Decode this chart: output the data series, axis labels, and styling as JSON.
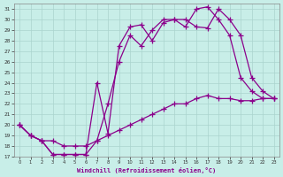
{
  "xlabel": "Windchill (Refroidissement éolien,°C)",
  "background_color": "#c8eee8",
  "line_color": "#8b008b",
  "grid_color": "#aad4ce",
  "xlim": [
    -0.5,
    23.5
  ],
  "ylim": [
    17,
    31.5
  ],
  "yticks": [
    17,
    18,
    19,
    20,
    21,
    22,
    23,
    24,
    25,
    26,
    27,
    28,
    29,
    30,
    31
  ],
  "xticks": [
    0,
    1,
    2,
    3,
    4,
    5,
    6,
    7,
    8,
    9,
    10,
    11,
    12,
    13,
    14,
    15,
    16,
    17,
    18,
    19,
    20,
    21,
    22,
    23
  ],
  "curve1_x": [
    0,
    1,
    2,
    3,
    4,
    5,
    6,
    7,
    8,
    9,
    10,
    11,
    12,
    13,
    14,
    15,
    16,
    17,
    18,
    19,
    20,
    21,
    22,
    23
  ],
  "curve1_y": [
    20.0,
    19.0,
    18.5,
    18.5,
    18.0,
    18.0,
    18.0,
    18.5,
    19.0,
    19.5,
    20.0,
    20.5,
    21.0,
    21.5,
    22.0,
    22.0,
    22.5,
    22.8,
    22.5,
    22.5,
    22.3,
    22.3,
    22.5,
    22.5
  ],
  "curve2_x": [
    0,
    1,
    2,
    3,
    4,
    5,
    6,
    7,
    8,
    9,
    10,
    11,
    12,
    13,
    14,
    15,
    16,
    17,
    18,
    19,
    20,
    21,
    22,
    23
  ],
  "curve2_y": [
    20.0,
    19.0,
    18.5,
    17.2,
    17.2,
    17.2,
    17.2,
    24.0,
    19.2,
    27.5,
    29.3,
    29.5,
    28.0,
    29.7,
    30.0,
    30.0,
    29.3,
    29.2,
    31.0,
    30.0,
    28.5,
    24.5,
    23.2,
    22.5
  ],
  "curve3_x": [
    0,
    1,
    2,
    3,
    4,
    5,
    6,
    7,
    8,
    9,
    10,
    11,
    12,
    13,
    14,
    15,
    16,
    17,
    18,
    19,
    20,
    21,
    22,
    23
  ],
  "curve3_y": [
    20.0,
    19.0,
    18.5,
    17.2,
    17.2,
    17.2,
    17.2,
    18.5,
    22.0,
    26.0,
    28.5,
    27.5,
    29.0,
    30.0,
    30.0,
    29.3,
    31.0,
    31.2,
    30.0,
    28.5,
    24.5,
    23.2,
    22.5,
    22.5
  ]
}
